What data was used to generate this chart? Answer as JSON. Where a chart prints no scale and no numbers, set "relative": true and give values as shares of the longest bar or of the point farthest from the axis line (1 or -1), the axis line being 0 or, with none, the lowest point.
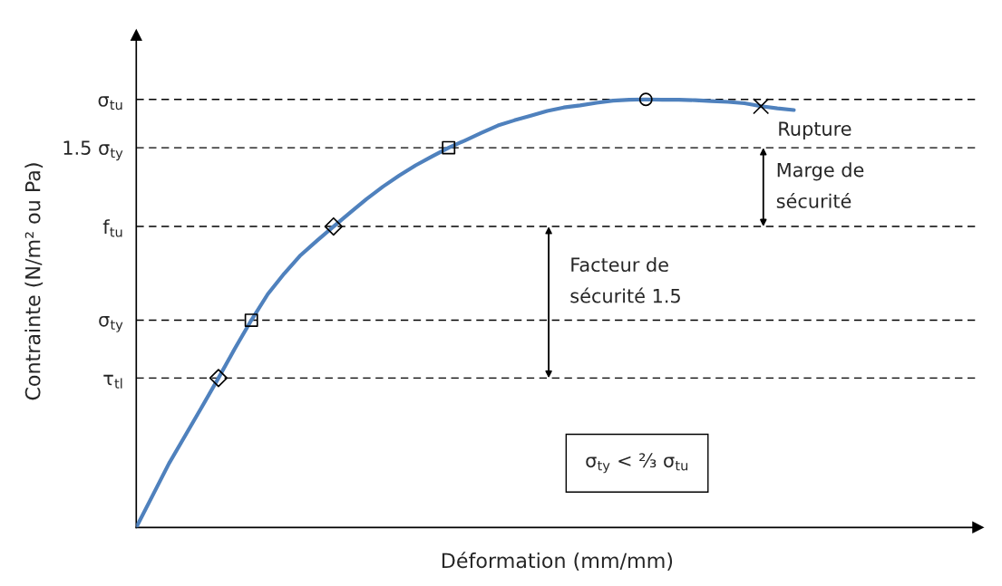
{
  "chart_data": {
    "type": "line",
    "relative": true,
    "xlabel": "Déformation (mm/mm)",
    "ylabel": "Contrainte (N/m² ou Pa)",
    "categories": [
      null,
      null,
      null,
      null,
      null,
      null,
      null,
      null,
      null,
      null,
      null,
      null,
      null,
      null,
      null,
      null,
      null,
      null,
      null,
      null,
      null,
      null,
      null,
      null,
      null,
      null,
      null,
      null,
      null,
      null,
      null,
      null,
      null,
      null,
      null,
      null,
      null,
      null,
      null,
      null,
      null
    ],
    "series": [
      {
        "color": "#4f81bd",
        "values": [
          0,
          0.075,
          0.15,
          0.216,
          0.282,
          0.349,
          0.418,
          0.484,
          0.545,
          0.593,
          0.636,
          0.67,
          0.703,
          0.735,
          0.767,
          0.796,
          0.822,
          0.846,
          0.867,
          0.887,
          0.904,
          0.922,
          0.939,
          0.951,
          0.962,
          0.973,
          0.981,
          0.986,
          0.992,
          0.997,
          0.999,
          1.0,
          0.999,
          0.999,
          0.998,
          0.996,
          0.994,
          0.991,
          0.984,
          0.979,
          0.975
        ]
      }
    ],
    "ref_lines": [
      {
        "axis": "y",
        "value": 1.0,
        "label": "σ$_{tu}$",
        "color": "#000000",
        "line_style": "dashed"
      },
      {
        "axis": "y",
        "value": 0.887,
        "label": "1.5 σ$_{ty}$",
        "color": "#000000",
        "line_style": "dashed"
      },
      {
        "axis": "y",
        "value": 0.703,
        "label": "f$_{tu}$",
        "color": "#000000",
        "line_style": "dashed"
      },
      {
        "axis": "y",
        "value": 0.484,
        "label": "σ$_{ty}$",
        "color": "#000000",
        "line_style": "dashed"
      },
      {
        "axis": "y",
        "value": 0.349,
        "label": "τ$_{tl}$",
        "color": "#000000",
        "line_style": "dashed"
      }
    ],
    "annotations": [
      "Rupture",
      "Marge de\nsécurité",
      "Facteur de\nsécurité 1.5",
      "σ$_{ty}$ < ⅔ σ$_{tu}$"
    ],
    "grid": false,
    "legend": false
  }
}
